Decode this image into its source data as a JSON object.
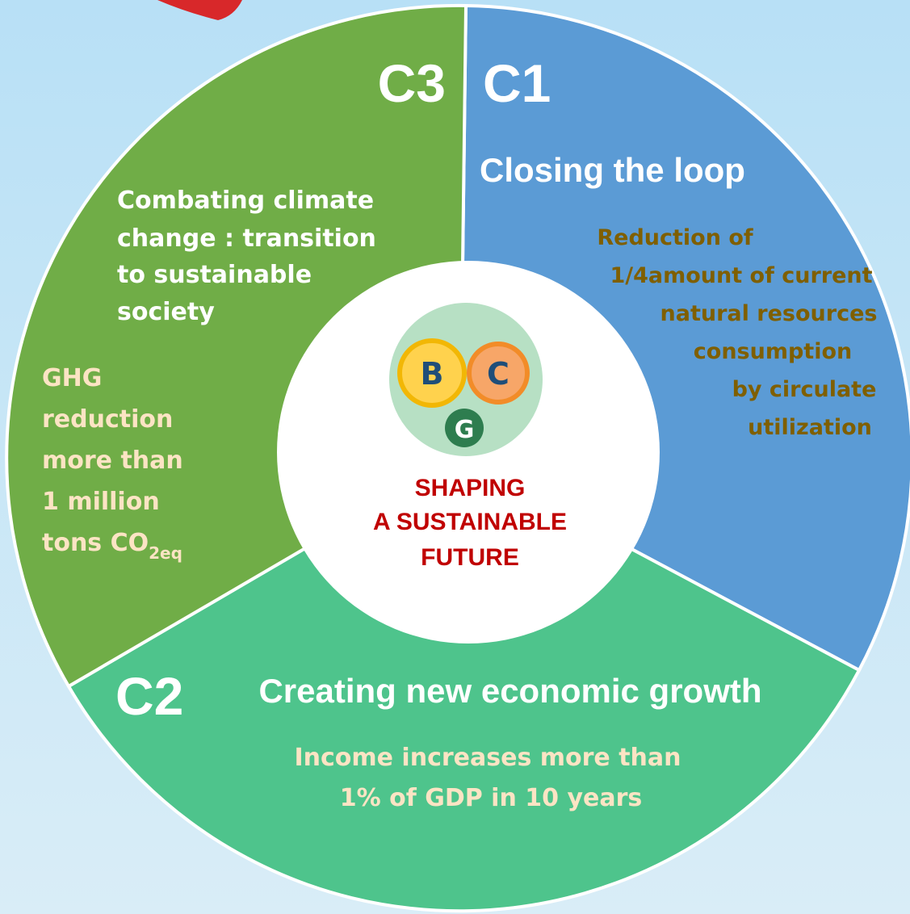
{
  "segments": [
    {
      "code": "C1",
      "title_lines": [
        "Closing the loop"
      ],
      "detail_lines": [
        "Reduction of",
        "1/4amount of current",
        "natural resources",
        "consumption",
        "by circulate",
        "utilization"
      ]
    },
    {
      "code": "C2",
      "title_lines": [
        "Creating new economic growth"
      ],
      "detail_lines": [
        "Income increases more than",
        "1% of GDP in 10 years"
      ]
    },
    {
      "code": "C3",
      "title_lines": [
        "Combating climate",
        "change : transition",
        "to sustainable",
        "society"
      ],
      "detail_lines": [
        "GHG",
        "reduction",
        "more than",
        "1 million",
        "tons CO"
      ],
      "detail_subscript": "2eq"
    }
  ],
  "center": {
    "logo_letters": [
      "B",
      "C",
      "G"
    ],
    "lines": [
      "SHAPING",
      "A SUSTAINABLE",
      "FUTURE"
    ]
  }
}
